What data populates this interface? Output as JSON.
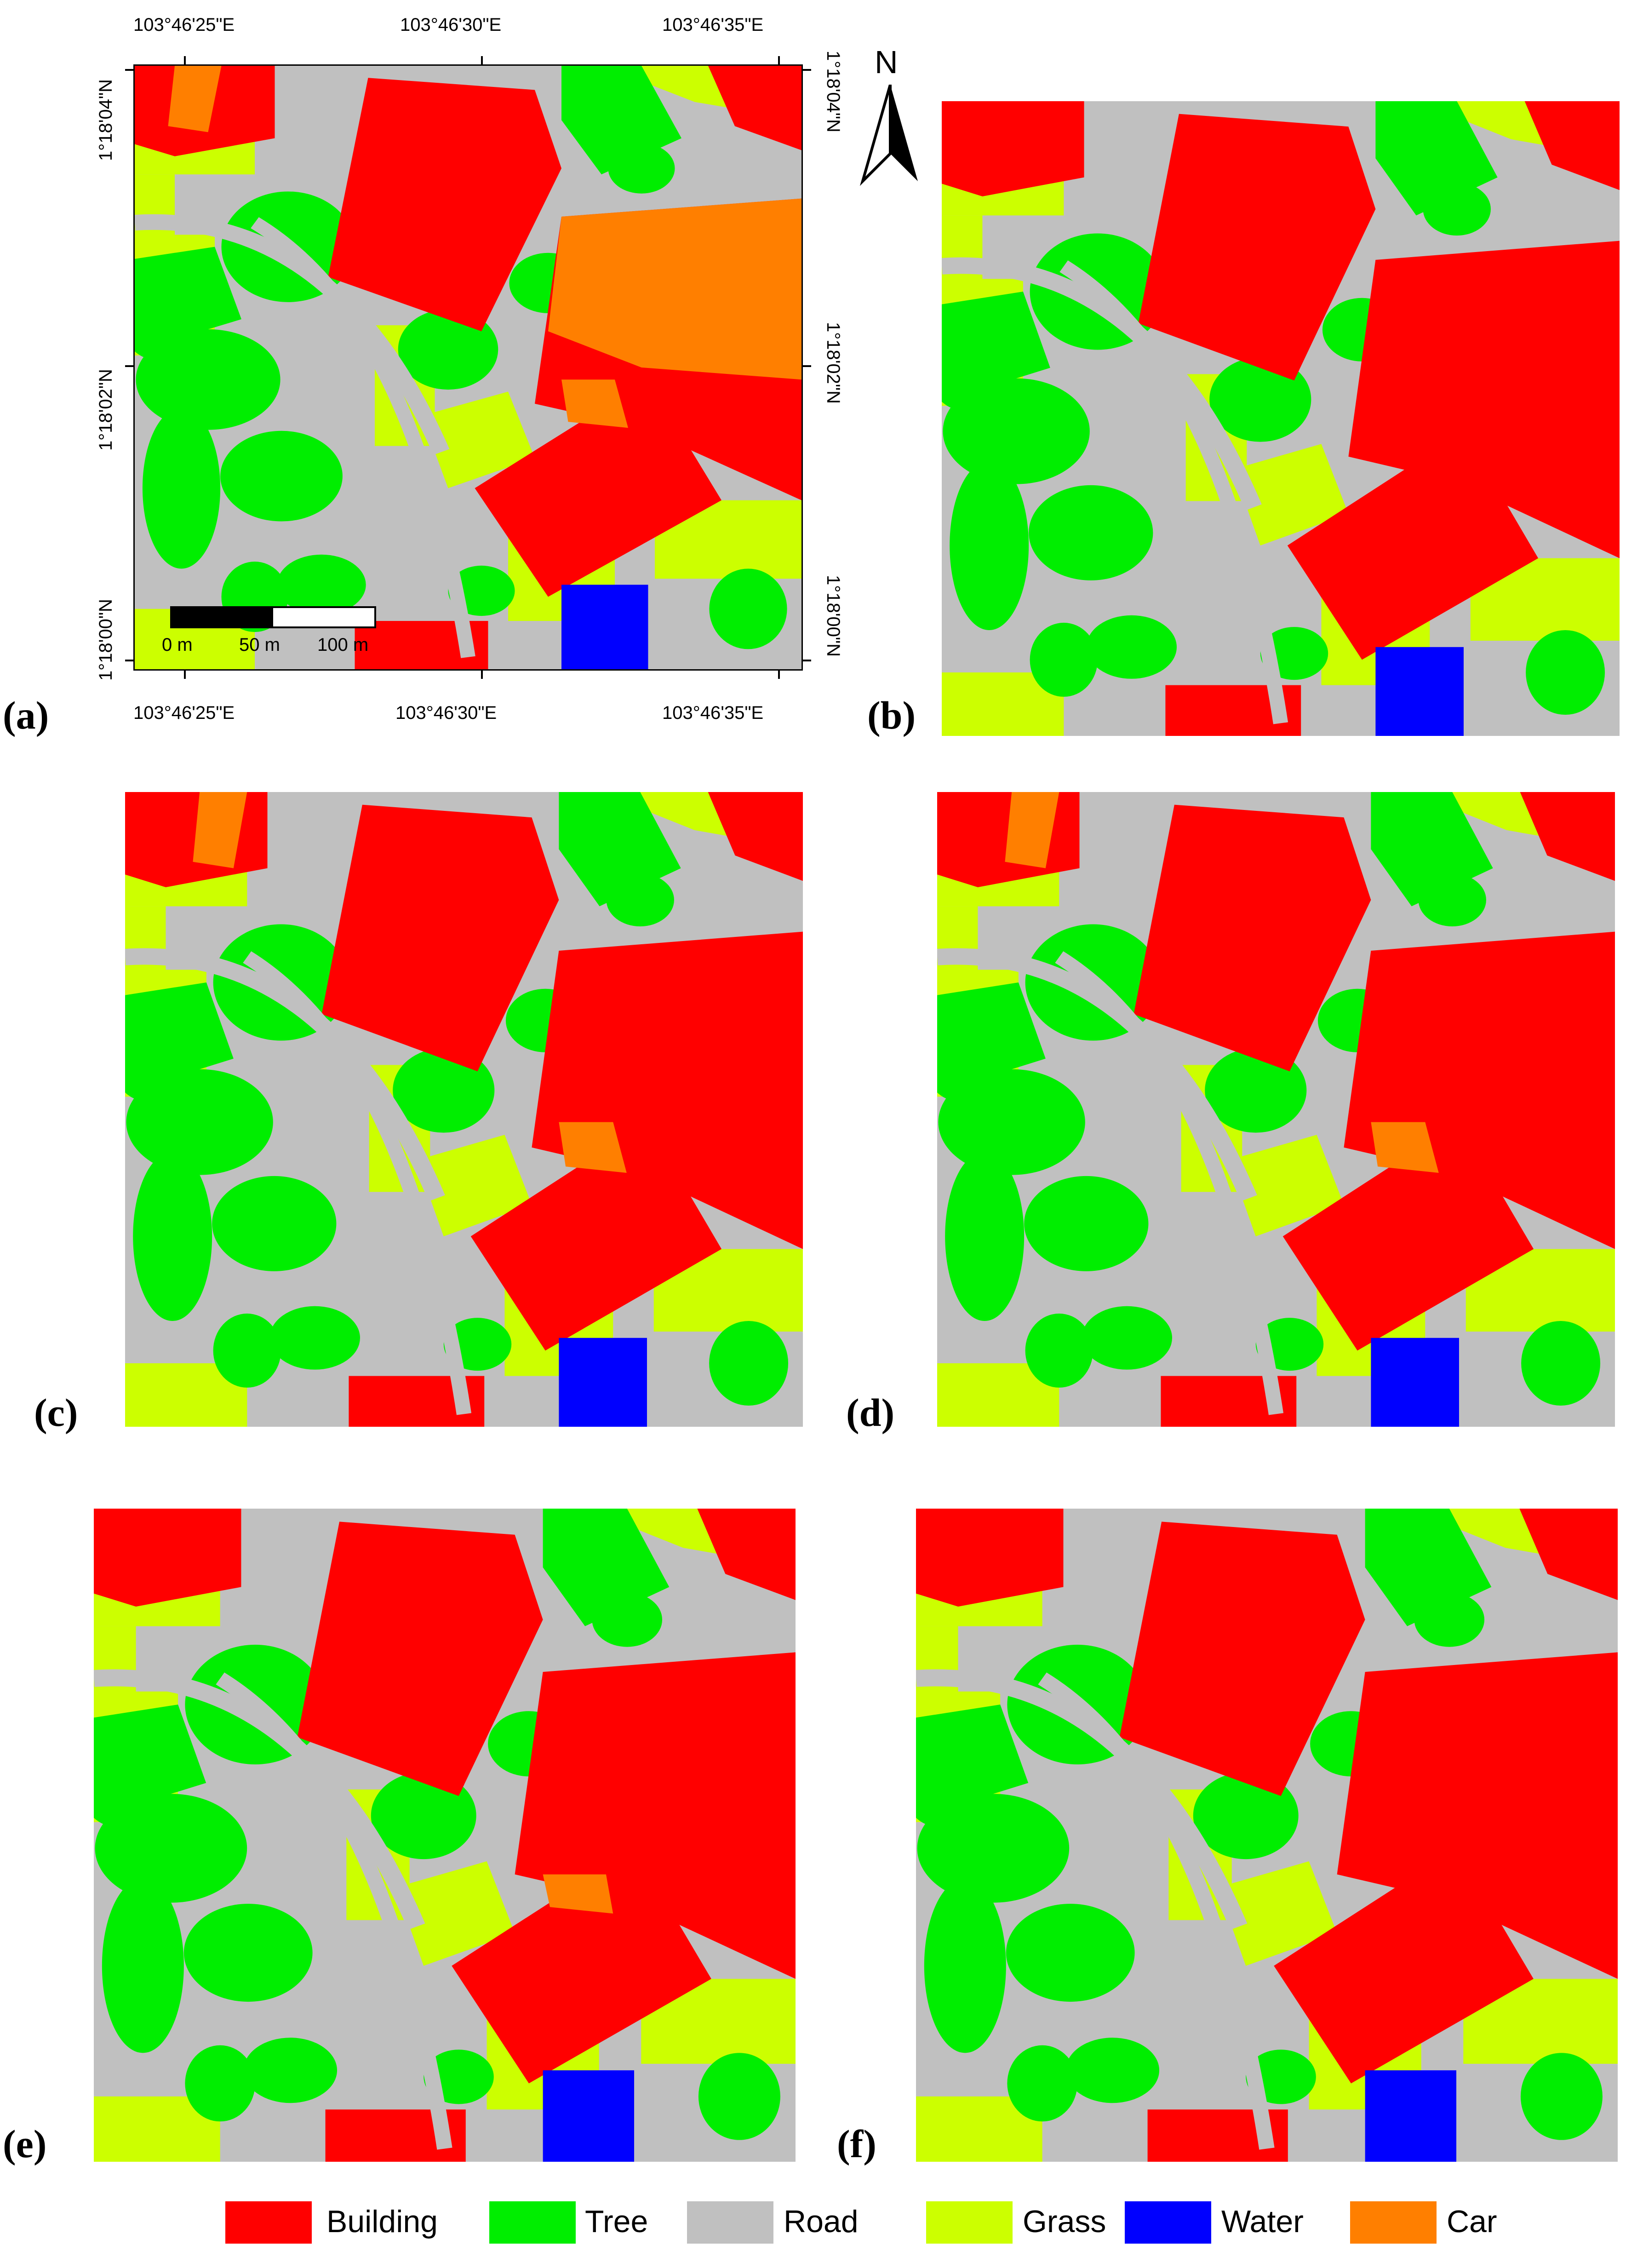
{
  "panel_labels": [
    "(a)",
    "(b)",
    "(c)",
    "(d)",
    "(e)",
    "(f)"
  ],
  "axes": {
    "top_lon": [
      "103°46'25\"E",
      "103°46'30\"E",
      "103°46'35\"E"
    ],
    "bottom_lon": [
      "103°46'25\"E",
      "103°46'30\"E",
      "103°46'35\"E"
    ],
    "left_lat": [
      "1°18'04\"N",
      "1°18'02\"N",
      "1°18'00\"N"
    ],
    "right_lat": [
      "1°18'04\"N",
      "1°18'02\"N",
      "1°18'00\"N"
    ]
  },
  "north_arrow": {
    "label": "N",
    "icon": "north-arrow-icon"
  },
  "scale_bar": {
    "labels": [
      "0 m",
      "50 m",
      "100 m"
    ]
  },
  "legend": [
    {
      "label": "Building",
      "color": "#ff0000"
    },
    {
      "label": "Tree",
      "color": "#00ee00"
    },
    {
      "label": "Road",
      "color": "#c0c0c0"
    },
    {
      "label": "Grass",
      "color": "#ccff00"
    },
    {
      "label": "Water",
      "color": "#0000ff"
    },
    {
      "label": "Car",
      "color": "#ff7f00"
    }
  ]
}
